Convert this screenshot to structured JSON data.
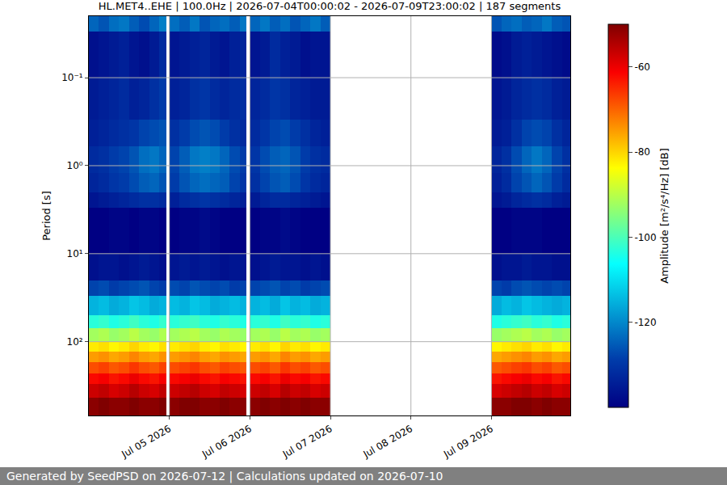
{
  "chart_data": {
    "type": "heatmap",
    "title": "HL.MET4..EHE | 100.0Hz | 2026-07-04T00:00:02 - 2026-07-09T23:00:02 | 187 segments",
    "ylabel": "Period [s]",
    "footer": "Generated by SeedPSD on 2026-07-12 | Calculations updated on 2026-07-10",
    "log": "y",
    "grid": true,
    "xlim": [
      "2026-07-04 00:00",
      "2026-07-09 23:30"
    ],
    "xticks": [
      {
        "value": "2026-07-05",
        "label": "Jul 05 2026"
      },
      {
        "value": "2026-07-06",
        "label": "Jul 06 2026"
      },
      {
        "value": "2026-07-07",
        "label": "Jul 07 2026"
      },
      {
        "value": "2026-07-08",
        "label": "Jul 08 2026"
      },
      {
        "value": "2026-07-09",
        "label": "Jul 09 2026"
      }
    ],
    "ylim": [
      690,
      0.02
    ],
    "yticks": [
      {
        "value": 0.1,
        "label": "10⁻¹"
      },
      {
        "value": 1,
        "label": "10⁰"
      },
      {
        "value": 10,
        "label": "10¹"
      },
      {
        "value": 100,
        "label": "10²"
      }
    ],
    "time_edges": [
      "2026-07-04 00:00",
      "2026-07-04 03:00",
      "2026-07-04 06:00",
      "2026-07-04 09:00",
      "2026-07-04 12:00",
      "2026-07-04 15:00",
      "2026-07-04 18:00",
      "2026-07-04 21:00",
      "2026-07-04 23:00",
      "2026-07-05 00:00",
      "2026-07-05 03:00",
      "2026-07-05 06:00",
      "2026-07-05 09:00",
      "2026-07-05 12:00",
      "2026-07-05 15:00",
      "2026-07-05 18:00",
      "2026-07-05 21:00",
      "2026-07-05 23:00",
      "2026-07-06 00:00",
      "2026-07-06 03:00",
      "2026-07-06 06:00",
      "2026-07-06 09:00",
      "2026-07-06 12:00",
      "2026-07-06 15:00",
      "2026-07-06 18:00",
      "2026-07-06 21:00",
      "2026-07-07 00:00",
      "2026-07-09 00:00",
      "2026-07-09 03:00",
      "2026-07-09 06:00",
      "2026-07-09 09:00",
      "2026-07-09 12:00",
      "2026-07-09 15:00",
      "2026-07-09 18:00",
      "2026-07-09 21:00",
      "2026-07-09 23:30"
    ],
    "period_edges": [
      0.02,
      0.03,
      0.1,
      0.3,
      0.6,
      1.2,
      2,
      3,
      10,
      20,
      30,
      50,
      70,
      100,
      130,
      170,
      230,
      300,
      430,
      690
    ],
    "z": [
      [
        -124,
        -126,
        -123,
        -122,
        -125,
        -127,
        -124,
        -121,
        null,
        -123,
        -125,
        -122,
        -126,
        -124,
        -123,
        -125,
        -122,
        null,
        -124,
        -122,
        -125,
        -123,
        -126,
        -124,
        -122,
        -125,
        null,
        -126,
        -124,
        -123,
        -125,
        -124,
        -122,
        -125,
        -126
      ],
      [
        -137,
        -136,
        -135,
        -134,
        -136,
        -137,
        -135,
        -132,
        null,
        -136,
        -135,
        -134,
        -133,
        -135,
        -136,
        -134,
        -133,
        null,
        -136,
        -135,
        -132,
        -134,
        -135,
        -137,
        -136,
        -136,
        null,
        -138,
        -137,
        -135,
        -134,
        -135,
        -136,
        -137,
        -138
      ],
      [
        -135,
        -134,
        -133,
        -132,
        -134,
        -133,
        -131,
        -129,
        null,
        -134,
        -133,
        -131,
        -130,
        -132,
        -133,
        -132,
        -131,
        null,
        -133,
        -132,
        -130,
        -131,
        -133,
        -134,
        -135,
        -135,
        null,
        -136,
        -135,
        -133,
        -132,
        -131,
        -132,
        -134,
        -135
      ],
      [
        -134,
        -133,
        -132,
        -131,
        -130,
        -128,
        -127,
        -126,
        null,
        -131,
        -129,
        -127,
        -126,
        -127,
        -129,
        -131,
        -132,
        null,
        -132,
        -130,
        -128,
        -127,
        -129,
        -131,
        -133,
        -134,
        null,
        -135,
        -134,
        -131,
        -128,
        -127,
        -128,
        -131,
        -133
      ],
      [
        -132,
        -131,
        -129,
        -128,
        -126,
        -123,
        -122,
        -124,
        null,
        -128,
        -125,
        -122,
        -121,
        -122,
        -124,
        -127,
        -129,
        null,
        -130,
        -127,
        -125,
        -124,
        -126,
        -129,
        -131,
        -132,
        null,
        -133,
        -131,
        -127,
        -124,
        -122,
        -124,
        -128,
        -131
      ],
      [
        -133,
        -132,
        -130,
        -129,
        -127,
        -125,
        -124,
        -126,
        null,
        -129,
        -126,
        -124,
        -123,
        -124,
        -125,
        -128,
        -130,
        null,
        -131,
        -128,
        -126,
        -125,
        -127,
        -130,
        -132,
        -133,
        null,
        -134,
        -132,
        -128,
        -126,
        -124,
        -126,
        -129,
        -132
      ],
      [
        -136,
        -135,
        -134,
        -133,
        -132,
        -131,
        -131,
        -132,
        null,
        -134,
        -132,
        -131,
        -130,
        -131,
        -132,
        -133,
        -134,
        null,
        -135,
        -133,
        -132,
        -132,
        -133,
        -134,
        -135,
        -136,
        null,
        -136,
        -135,
        -133,
        -132,
        -131,
        -132,
        -134,
        -135
      ],
      [
        -140,
        -140,
        -139,
        -139,
        -140,
        -139,
        -139,
        -140,
        null,
        -140,
        -139,
        -139,
        -138,
        -139,
        -140,
        -140,
        -140,
        null,
        -140,
        -139,
        -139,
        -138,
        -139,
        -140,
        -140,
        -140,
        null,
        -140,
        -140,
        -139,
        -139,
        -139,
        -140,
        -140,
        -140
      ],
      [
        -137,
        -136,
        -136,
        -137,
        -136,
        -135,
        -136,
        -137,
        null,
        -136,
        -135,
        -136,
        -135,
        -136,
        -137,
        -136,
        -136,
        null,
        -137,
        -136,
        -135,
        -136,
        -136,
        -137,
        -136,
        -137,
        null,
        -137,
        -136,
        -136,
        -135,
        -136,
        -136,
        -137,
        -137
      ],
      [
        -128,
        -127,
        -129,
        -128,
        -127,
        -126,
        -128,
        -129,
        null,
        -127,
        -128,
        -126,
        -127,
        -128,
        -127,
        -129,
        -128,
        null,
        -128,
        -127,
        -126,
        -128,
        -127,
        -129,
        -128,
        -127,
        null,
        -128,
        -129,
        -127,
        -126,
        -127,
        -128,
        -127,
        -128
      ],
      [
        -115,
        -114,
        -116,
        -115,
        -113,
        -114,
        -116,
        -115,
        null,
        -114,
        -115,
        -113,
        -114,
        -116,
        -115,
        -114,
        -115,
        null,
        -115,
        -114,
        -116,
        -113,
        -115,
        -114,
        -116,
        -115,
        null,
        -116,
        -114,
        -115,
        -113,
        -114,
        -115,
        -116,
        -115
      ],
      [
        -103,
        -102,
        -104,
        -103,
        -101,
        -103,
        -104,
        -102,
        null,
        -103,
        -102,
        -101,
        -103,
        -104,
        -102,
        -103,
        -104,
        null,
        -103,
        -102,
        -104,
        -101,
        -103,
        -102,
        -104,
        -103,
        null,
        -104,
        -103,
        -102,
        -101,
        -103,
        -102,
        -104,
        -103
      ],
      [
        -92,
        -91,
        -93,
        -92,
        -90,
        -92,
        -93,
        -91,
        null,
        -92,
        -91,
        -90,
        -92,
        -93,
        -91,
        -92,
        -93,
        null,
        -92,
        -91,
        -93,
        -90,
        -92,
        -91,
        -93,
        -92,
        null,
        -93,
        -92,
        -91,
        -90,
        -92,
        -91,
        -93,
        -92
      ],
      [
        -82,
        -81,
        -83,
        -82,
        -80,
        -82,
        -83,
        -81,
        null,
        -82,
        -81,
        -80,
        -82,
        -83,
        -81,
        -82,
        -83,
        null,
        -82,
        -81,
        -83,
        -80,
        -82,
        -81,
        -83,
        -82,
        null,
        -83,
        -82,
        -81,
        -80,
        -82,
        -81,
        -83,
        -82
      ],
      [
        -75,
        -74,
        -76,
        -75,
        -73,
        -75,
        -76,
        -74,
        null,
        -75,
        -74,
        -73,
        -75,
        -76,
        -74,
        -75,
        -76,
        null,
        -75,
        -74,
        -76,
        -73,
        -75,
        -74,
        -76,
        -75,
        null,
        -76,
        -75,
        -74,
        -73,
        -75,
        -74,
        -76,
        -75
      ],
      [
        -68,
        -67,
        -69,
        -68,
        -66,
        -68,
        -69,
        -67,
        null,
        -68,
        -67,
        -66,
        -68,
        -69,
        -67,
        -68,
        -69,
        null,
        -68,
        -67,
        -69,
        -66,
        -68,
        -67,
        -69,
        -68,
        null,
        -69,
        -68,
        -67,
        -66,
        -68,
        -67,
        -69,
        -68
      ],
      [
        -62,
        -61,
        -63,
        -62,
        -60,
        -62,
        -63,
        -61,
        null,
        -62,
        -61,
        -60,
        -62,
        -63,
        -61,
        -62,
        -63,
        null,
        -62,
        -61,
        -63,
        -60,
        -62,
        -61,
        -63,
        -62,
        null,
        -63,
        -62,
        -61,
        -60,
        -62,
        -61,
        -63,
        -62
      ],
      [
        -57,
        -56,
        -58,
        -57,
        -55,
        -57,
        -58,
        -56,
        null,
        -57,
        -56,
        -55,
        -57,
        -58,
        -56,
        -57,
        -58,
        null,
        -57,
        -56,
        -58,
        -55,
        -57,
        -56,
        -58,
        -57,
        null,
        -58,
        -57,
        -56,
        -55,
        -57,
        -56,
        -58,
        -57
      ],
      [
        -51,
        -50,
        -51,
        -51,
        -50,
        -51,
        -51,
        -50,
        null,
        -51,
        -50,
        -50,
        -51,
        -51,
        -50,
        -51,
        -51,
        null,
        -51,
        -50,
        -51,
        -50,
        -51,
        -50,
        -51,
        -51,
        null,
        -51,
        -51,
        -50,
        -50,
        -51,
        -50,
        -51,
        -51
      ]
    ],
    "colorbar": {
      "title": "Amplitude [m²/s⁴/Hz] [dB]",
      "range": [
        -140,
        -50
      ],
      "ticks": [
        -120,
        -100,
        -80,
        -60
      ]
    }
  }
}
